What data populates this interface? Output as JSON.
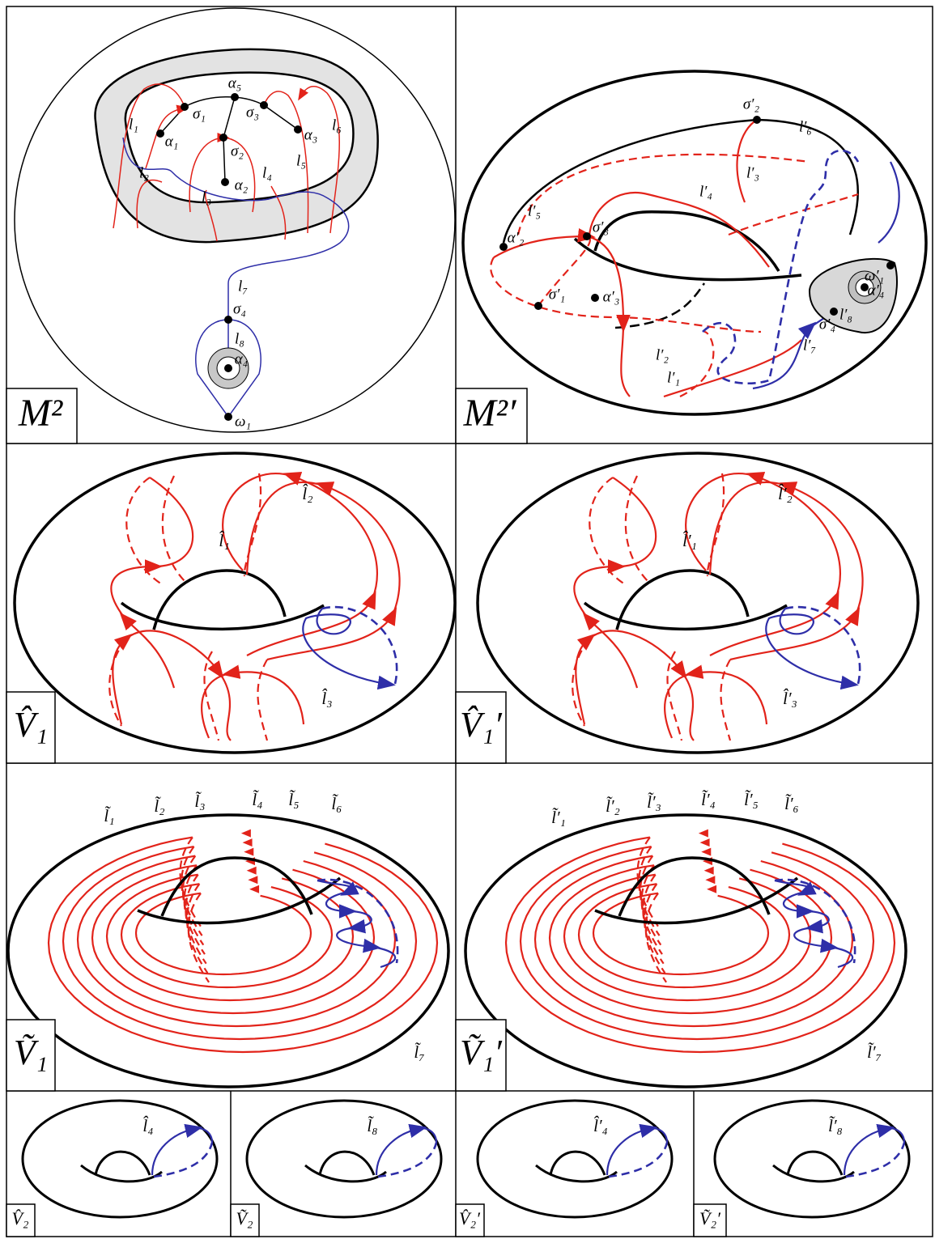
{
  "panels": [
    {
      "label": "M²",
      "annotations": [
        "α₅",
        "σ₁",
        "σ₃",
        "α₁",
        "α₃",
        "σ₂",
        "α₂",
        "l₁",
        "l₂",
        "l₃",
        "l₄",
        "l₅",
        "l₆",
        "l₇",
        "σ₄",
        "l₈",
        "α₄",
        "ω₁"
      ]
    },
    {
      "label": "M²′",
      "annotations": [
        "σ′₂",
        "l′₆",
        "l′₃",
        "l′₄",
        "l′₅",
        "α′₂",
        "σ′₃",
        "σ′₁",
        "α′₃",
        "ω′₁",
        "α′₄",
        "l′₈",
        "σ′₄",
        "l′₇",
        "l′₂",
        "l′₁"
      ]
    },
    {
      "label": "V̂₁",
      "annotations": [
        "l̂₁",
        "l̂₂",
        "l̂₃"
      ]
    },
    {
      "label": "V̂₁′",
      "annotations": [
        "l̂′₁",
        "l̂′₂",
        "l̂′₃"
      ]
    },
    {
      "label": "Ṽ₁",
      "annotations": [
        "l̃₁",
        "l̃₂",
        "l̃₃",
        "l̃₄",
        "l̃₅",
        "l̃₆",
        "l̃₇"
      ]
    },
    {
      "label": "Ṽ₁′",
      "annotations": [
        "l̃′₁",
        "l̃′₂",
        "l̃′₃",
        "l̃′₄",
        "l̃′₅",
        "l̃′₆",
        "l̃′₇"
      ]
    },
    {
      "label": "V̂₂",
      "annotations": [
        "l̂₄"
      ]
    },
    {
      "label": "Ṽ₂",
      "annotations": [
        "l̃₈"
      ]
    },
    {
      "label": "V̂₂′",
      "annotations": [
        "l̂′₄"
      ]
    },
    {
      "label": "Ṽ₂′",
      "annotations": [
        "l̃′₈"
      ]
    }
  ]
}
